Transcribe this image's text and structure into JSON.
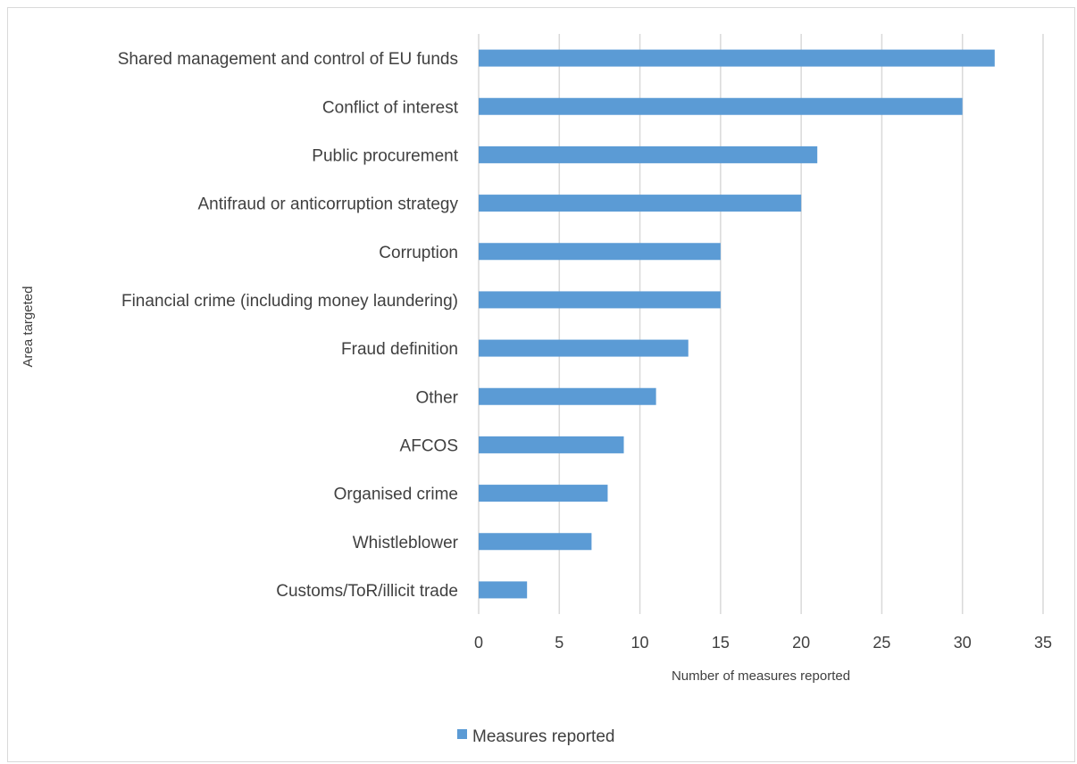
{
  "chart_data": {
    "type": "bar",
    "orientation": "horizontal",
    "categories": [
      "Shared management and control of EU funds",
      "Conflict of interest",
      "Public procurement",
      "Antifraud or anticorruption strategy",
      "Corruption",
      "Financial crime (including money laundering)",
      "Fraud definition",
      "Other",
      "AFCOS",
      "Organised crime",
      "Whistleblower",
      "Customs/ToR/illicit trade"
    ],
    "series": [
      {
        "name": "Measures reported",
        "color": "#5b9bd5",
        "values": [
          32,
          30,
          21,
          20,
          15,
          15,
          13,
          11,
          9,
          8,
          7,
          3
        ]
      }
    ],
    "xlabel": "Number of measures reported",
    "ylabel": "Area targeted",
    "xlim": [
      0,
      35
    ],
    "xticks": [
      0,
      5,
      10,
      15,
      20,
      25,
      30,
      35
    ],
    "grid": "vertical",
    "legend": "bottom",
    "colors": {
      "bar": "#5b9bd5",
      "grid": "#d9d9d9",
      "text": "#404040"
    }
  }
}
